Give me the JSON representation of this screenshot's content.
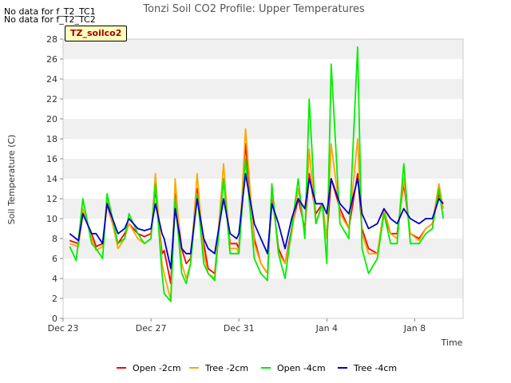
{
  "notes": [
    "No data for f_T2_TC1",
    "No data for f_T2_TC2"
  ],
  "site_label": "TZ_soilco2",
  "chart_data": {
    "type": "line",
    "title": "Tonzi Soil CO2 Profile: Upper Temperatures",
    "xlabel": "Time",
    "ylabel": "Soil Temperature (C)",
    "xlim": [
      0,
      18.2
    ],
    "ylim": [
      0,
      28
    ],
    "yticks": [
      0,
      2,
      4,
      6,
      8,
      10,
      12,
      14,
      16,
      18,
      20,
      22,
      24,
      26,
      28
    ],
    "xticks": [
      {
        "x": 0,
        "label": "Dec 23"
      },
      {
        "x": 4,
        "label": "Dec 27"
      },
      {
        "x": 8,
        "label": "Dec 31"
      },
      {
        "x": 12,
        "label": "Jan 4"
      },
      {
        "x": 16,
        "label": "Jan 8"
      }
    ],
    "grid": true,
    "legend_position": "bottom",
    "colors": {
      "Open -2cm": "#ff0000",
      "Tree -2cm": "#ffa500",
      "Open -4cm": "#00ee00",
      "Tree -4cm": "#0000cc"
    },
    "series": [
      {
        "name": "Open -2cm",
        "x": [
          0.3,
          0.7,
          0.9,
          1.3,
          1.5,
          1.8,
          2.0,
          2.5,
          2.8,
          3.0,
          3.4,
          3.7,
          4.0,
          4.2,
          4.5,
          4.6,
          4.9,
          5.1,
          5.4,
          5.6,
          5.8,
          6.1,
          6.4,
          6.6,
          6.9,
          7.3,
          7.6,
          7.9,
          8.0,
          8.3,
          8.7,
          9.0,
          9.3,
          9.5,
          9.8,
          10.1,
          10.4,
          10.7,
          11.0,
          11.2,
          11.5,
          11.8,
          12.0,
          12.2,
          12.6,
          13.0,
          13.4,
          13.6,
          13.9,
          14.3,
          14.6,
          14.9,
          15.2,
          15.5,
          15.8,
          16.2,
          16.5,
          16.8,
          17.1,
          17.3
        ],
        "y": [
          7.8,
          7.5,
          10.5,
          8.5,
          7.2,
          7.5,
          11.5,
          7.5,
          8.5,
          9.5,
          8.5,
          8.2,
          8.5,
          13.0,
          6.5,
          6.8,
          3.5,
          12.5,
          7.0,
          5.5,
          6.0,
          13.0,
          7.5,
          5.0,
          4.5,
          14.0,
          7.5,
          7.5,
          7.0,
          17.5,
          8.0,
          5.5,
          4.5,
          12.5,
          7.0,
          5.5,
          9.0,
          12.0,
          9.0,
          14.5,
          10.5,
          11.5,
          8.0,
          14.0,
          11.0,
          9.0,
          14.5,
          9.0,
          7.0,
          6.5,
          10.5,
          8.5,
          8.5,
          13.5,
          8.5,
          8.0,
          9.0,
          9.5,
          12.5,
          11.0
        ]
      },
      {
        "name": "Tree -2cm",
        "x": [
          0.3,
          0.7,
          0.9,
          1.3,
          1.5,
          1.8,
          2.0,
          2.5,
          2.8,
          3.0,
          3.4,
          3.7,
          4.0,
          4.2,
          4.5,
          4.6,
          4.9,
          5.1,
          5.4,
          5.6,
          5.8,
          6.1,
          6.4,
          6.6,
          6.9,
          7.3,
          7.6,
          7.9,
          8.0,
          8.3,
          8.7,
          9.0,
          9.3,
          9.5,
          9.8,
          10.1,
          10.4,
          10.7,
          11.0,
          11.2,
          11.5,
          11.8,
          12.0,
          12.2,
          12.6,
          13.0,
          13.4,
          13.6,
          13.9,
          14.3,
          14.6,
          14.9,
          15.2,
          15.5,
          15.8,
          16.2,
          16.5,
          16.8,
          17.1,
          17.3
        ],
        "y": [
          7.5,
          7.2,
          11.0,
          8.0,
          6.8,
          7.2,
          12.0,
          7.0,
          8.0,
          9.5,
          8.0,
          7.5,
          8.0,
          14.5,
          5.5,
          4.5,
          1.8,
          14.0,
          5.5,
          4.0,
          5.5,
          14.5,
          6.5,
          4.5,
          4.0,
          15.5,
          7.0,
          7.0,
          6.5,
          19.0,
          7.5,
          5.5,
          4.5,
          13.0,
          6.5,
          5.5,
          8.5,
          13.0,
          8.5,
          17.0,
          9.5,
          11.5,
          8.0,
          17.5,
          10.5,
          9.0,
          18.0,
          8.5,
          6.5,
          6.5,
          11.0,
          8.5,
          8.0,
          14.0,
          8.5,
          7.8,
          9.0,
          9.5,
          13.5,
          11.0
        ]
      },
      {
        "name": "Open -4cm",
        "x": [
          0.3,
          0.6,
          0.9,
          1.3,
          1.5,
          1.8,
          2.0,
          2.5,
          2.8,
          3.0,
          3.4,
          3.7,
          4.0,
          4.2,
          4.5,
          4.6,
          4.9,
          5.1,
          5.4,
          5.6,
          5.8,
          6.1,
          6.4,
          6.6,
          6.9,
          7.3,
          7.6,
          7.9,
          8.0,
          8.3,
          8.7,
          9.0,
          9.3,
          9.5,
          9.8,
          10.1,
          10.4,
          10.7,
          11.0,
          11.2,
          11.5,
          11.8,
          12.0,
          12.2,
          12.6,
          13.0,
          13.4,
          13.6,
          13.9,
          14.3,
          14.6,
          14.9,
          15.2,
          15.5,
          15.8,
          16.2,
          16.5,
          16.8,
          17.1,
          17.3
        ],
        "y": [
          7.2,
          5.8,
          12.0,
          7.5,
          7.0,
          6.0,
          12.5,
          7.5,
          8.0,
          10.5,
          8.5,
          7.5,
          8.0,
          13.5,
          4.5,
          2.5,
          1.7,
          12.0,
          4.5,
          3.5,
          5.5,
          12.5,
          5.5,
          4.5,
          3.8,
          14.0,
          6.5,
          6.5,
          6.5,
          16.0,
          6.0,
          4.5,
          3.8,
          13.5,
          6.5,
          4.0,
          9.0,
          14.0,
          8.0,
          22.0,
          9.5,
          11.5,
          5.5,
          25.5,
          9.5,
          8.0,
          27.2,
          7.0,
          4.5,
          6.0,
          10.5,
          7.5,
          7.5,
          15.5,
          7.5,
          7.5,
          8.5,
          9.0,
          13.0,
          10.0
        ]
      },
      {
        "name": "Tree -4cm",
        "x": [
          0.3,
          0.7,
          0.9,
          1.3,
          1.5,
          1.8,
          2.0,
          2.5,
          2.8,
          3.0,
          3.4,
          3.7,
          4.0,
          4.2,
          4.5,
          4.6,
          4.9,
          5.1,
          5.4,
          5.6,
          5.8,
          6.1,
          6.4,
          6.6,
          6.9,
          7.3,
          7.6,
          7.9,
          8.0,
          8.3,
          8.7,
          9.0,
          9.3,
          9.5,
          9.8,
          10.1,
          10.4,
          10.7,
          11.0,
          11.2,
          11.5,
          11.8,
          12.0,
          12.2,
          12.6,
          13.0,
          13.4,
          13.6,
          13.9,
          14.3,
          14.6,
          14.9,
          15.2,
          15.5,
          15.8,
          16.2,
          16.5,
          16.8,
          17.1,
          17.3
        ],
        "y": [
          8.5,
          7.8,
          10.5,
          8.5,
          8.5,
          7.5,
          11.5,
          8.5,
          9.0,
          10.0,
          9.0,
          8.8,
          9.0,
          11.5,
          8.5,
          8.0,
          5.0,
          11.0,
          7.0,
          6.5,
          6.5,
          12.0,
          8.0,
          7.0,
          6.5,
          12.0,
          8.5,
          8.0,
          8.5,
          14.5,
          9.5,
          8.0,
          6.5,
          11.5,
          9.5,
          7.0,
          10.0,
          12.0,
          11.0,
          14.0,
          11.5,
          11.5,
          10.5,
          14.0,
          11.5,
          10.5,
          14.0,
          10.5,
          9.0,
          9.5,
          11.0,
          10.0,
          9.5,
          11.0,
          10.0,
          9.5,
          10.0,
          10.0,
          12.0,
          11.5
        ]
      }
    ]
  }
}
